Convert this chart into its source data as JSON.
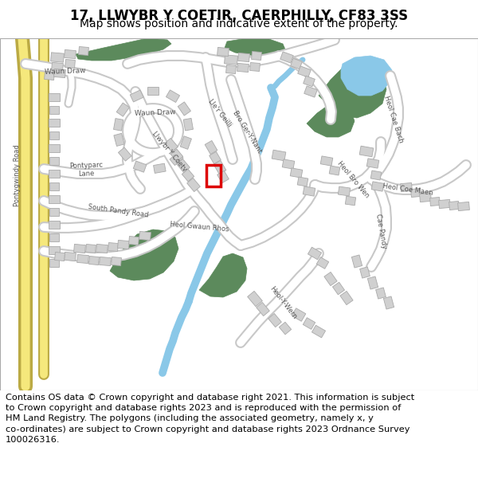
{
  "title": "17, LLWYBR Y COETIR, CAERPHILLY, CF83 3SS",
  "subtitle": "Map shows position and indicative extent of the property.",
  "footer_line1": "Contains OS data © Crown copyright and database right 2021. This information is subject",
  "footer_line2": "to Crown copyright and database rights 2023 and is reproduced with the permission of",
  "footer_line3": "HM Land Registry. The polygons (including the associated geometry, namely x, y",
  "footer_line4": "co-ordinates) are subject to Crown copyright and database rights 2023 Ordnance Survey",
  "footer_line5": "100026316.",
  "map_bg": "#eeeeee",
  "road_fill": "#ffffff",
  "road_outline": "#c8c8c8",
  "building_fill": "#d0d0d0",
  "building_edge": "#aaaaaa",
  "green_fill": "#5c8a5c",
  "water_color": "#8ac8e8",
  "yellow_fill": "#f5e87c",
  "property_color": "#dd0000",
  "title_fs": 12,
  "subtitle_fs": 10,
  "footer_fs": 8.2,
  "label_fs": 6.2
}
